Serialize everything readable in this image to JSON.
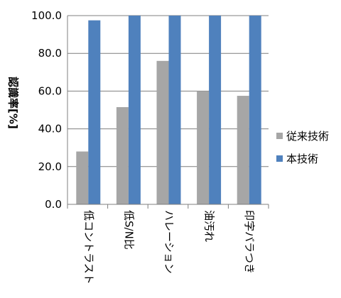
{
  "chart_data": {
    "type": "bar",
    "ylabel": "認識率[%]",
    "ylim": [
      0,
      100
    ],
    "yticks": [
      "0.0",
      "20.0",
      "40.0",
      "60.0",
      "80.0",
      "100.0"
    ],
    "grid": "horizontal",
    "legend_position": "right",
    "categories": [
      "低コントラスト",
      "低S/N比",
      "ハレーション",
      "油汚れ",
      "印字バラつき"
    ],
    "series": [
      {
        "name": "従来技術",
        "color": "#a6a6a6",
        "values": [
          28,
          51.5,
          76,
          60,
          57.5
        ]
      },
      {
        "name": "本技術",
        "color": "#4f81bd",
        "values": [
          97.5,
          100,
          100,
          100,
          100
        ]
      }
    ]
  }
}
